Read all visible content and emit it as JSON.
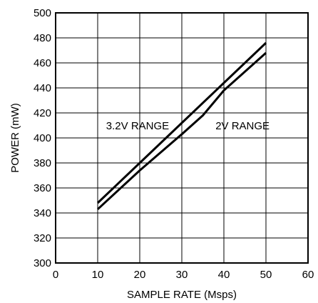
{
  "chart_data": {
    "type": "line",
    "xlabel": "SAMPLE RATE (Msps)",
    "ylabel": "POWER (mW)",
    "xlim": [
      0,
      60
    ],
    "ylim": [
      300,
      500
    ],
    "x_ticks": [
      0,
      10,
      20,
      30,
      40,
      50,
      60
    ],
    "y_ticks": [
      300,
      320,
      340,
      360,
      380,
      400,
      420,
      440,
      460,
      480,
      500
    ],
    "grid": true,
    "series": [
      {
        "x": [
          10,
          20,
          30,
          40,
          50
        ],
        "values": [
          348,
          380,
          412,
          444,
          476
        ]
      },
      {
        "x": [
          10,
          20,
          30,
          35,
          40,
          50
        ],
        "values": [
          343,
          374,
          403,
          418,
          438,
          468
        ]
      }
    ],
    "annotations": [
      {
        "text": "3.2V RANGE",
        "x": 12,
        "y": 407
      },
      {
        "text": "2V RANGE",
        "x": 38,
        "y": 407
      }
    ]
  }
}
